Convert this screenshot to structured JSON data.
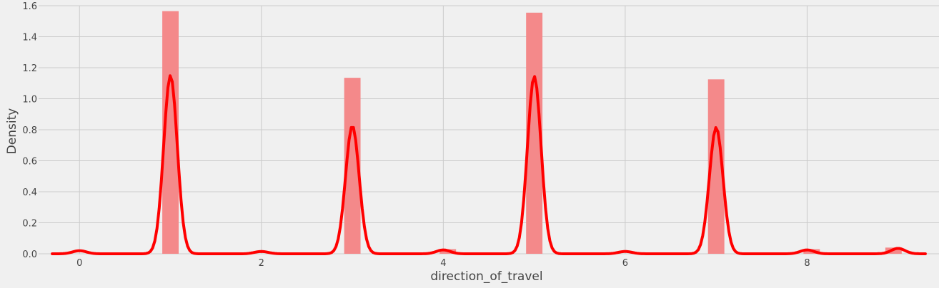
{
  "chart_data": {
    "type": "bar",
    "title": "",
    "xlabel": "direction_of_travel",
    "ylabel": "Density",
    "xlim": [
      -0.45,
      9.45
    ],
    "ylim": [
      0,
      1.6
    ],
    "grid": true,
    "xticks": [
      0,
      2,
      4,
      6,
      8
    ],
    "yticks": [
      0.0,
      0.2,
      0.4,
      0.6,
      0.8,
      1.0,
      1.2,
      1.4,
      1.6
    ],
    "ytick_labels": [
      "0.0",
      "0.2",
      "0.4",
      "0.6",
      "0.8",
      "1.0",
      "1.2",
      "1.4",
      "1.6"
    ],
    "bar_color": "#f4898a",
    "line_color": "#ff0000",
    "histogram": {
      "bin_width": 0.18,
      "bins": [
        {
          "center": 1.0,
          "density": 1.565
        },
        {
          "center": 3.0,
          "density": 1.135
        },
        {
          "center": 4.05,
          "density": 0.03
        },
        {
          "center": 5.0,
          "density": 1.555
        },
        {
          "center": 7.0,
          "density": 1.125
        },
        {
          "center": 8.05,
          "density": 0.03
        },
        {
          "center": 8.95,
          "density": 0.04
        }
      ]
    },
    "kde": {
      "x_range": [
        -0.3,
        9.3
      ],
      "bandwidth": 0.075,
      "components": [
        {
          "mean": 0.0,
          "peak": 0.02
        },
        {
          "mean": 1.0,
          "peak": 1.15
        },
        {
          "mean": 2.0,
          "peak": 0.015
        },
        {
          "mean": 3.0,
          "peak": 0.825
        },
        {
          "mean": 4.0,
          "peak": 0.025
        },
        {
          "mean": 5.0,
          "peak": 1.145
        },
        {
          "mean": 6.0,
          "peak": 0.015
        },
        {
          "mean": 7.0,
          "peak": 0.815
        },
        {
          "mean": 8.0,
          "peak": 0.025
        },
        {
          "mean": 9.0,
          "peak": 0.035
        }
      ]
    }
  }
}
